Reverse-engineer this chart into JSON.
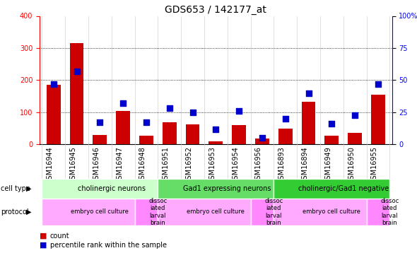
{
  "title": "GDS653 / 142177_at",
  "samples": [
    "GSM16944",
    "GSM16945",
    "GSM16946",
    "GSM16947",
    "GSM16948",
    "GSM16951",
    "GSM16952",
    "GSM16953",
    "GSM16954",
    "GSM16956",
    "GSM16893",
    "GSM16894",
    "GSM16949",
    "GSM16950",
    "GSM16955"
  ],
  "counts": [
    185,
    315,
    30,
    105,
    28,
    68,
    62,
    10,
    60,
    18,
    50,
    133,
    28,
    35,
    155
  ],
  "percentile": [
    47,
    57,
    17,
    32,
    17,
    28,
    25,
    12,
    26,
    5,
    20,
    40,
    16,
    23,
    47
  ],
  "cell_types": [
    {
      "label": "cholinergic neurons",
      "start": 0,
      "end": 5,
      "color": "#ccffcc"
    },
    {
      "label": "Gad1 expressing neurons",
      "start": 5,
      "end": 10,
      "color": "#66dd66"
    },
    {
      "label": "cholinergic/Gad1 negative",
      "start": 10,
      "end": 15,
      "color": "#33cc33"
    }
  ],
  "protocols": [
    {
      "label": "embryo cell culture",
      "start": 0,
      "end": 4,
      "color": "#ffaaff"
    },
    {
      "label": "dissoc\niated\nlarval\nbrain",
      "start": 4,
      "end": 5,
      "color": "#ff88ff"
    },
    {
      "label": "embryo cell culture",
      "start": 5,
      "end": 9,
      "color": "#ffaaff"
    },
    {
      "label": "dissoc\niated\nlarval\nbrain",
      "start": 9,
      "end": 10,
      "color": "#ff88ff"
    },
    {
      "label": "embryo cell culture",
      "start": 10,
      "end": 14,
      "color": "#ffaaff"
    },
    {
      "label": "dissoc\niated\nlarval\nbrain",
      "start": 14,
      "end": 15,
      "color": "#ff88ff"
    }
  ],
  "bar_color": "#cc0000",
  "dot_color": "#0000cc",
  "left_ylim": [
    0,
    400
  ],
  "right_ylim": [
    0,
    100
  ],
  "left_yticks": [
    0,
    100,
    200,
    300,
    400
  ],
  "right_yticks": [
    0,
    25,
    50,
    75,
    100
  ],
  "right_yticklabels": [
    "0",
    "25",
    "50",
    "75",
    "100%"
  ],
  "grid_values": [
    100,
    200,
    300
  ],
  "title_fontsize": 10,
  "tick_fontsize": 7,
  "label_fontsize": 7.5,
  "annot_fontsize": 7,
  "dot_size": 40
}
